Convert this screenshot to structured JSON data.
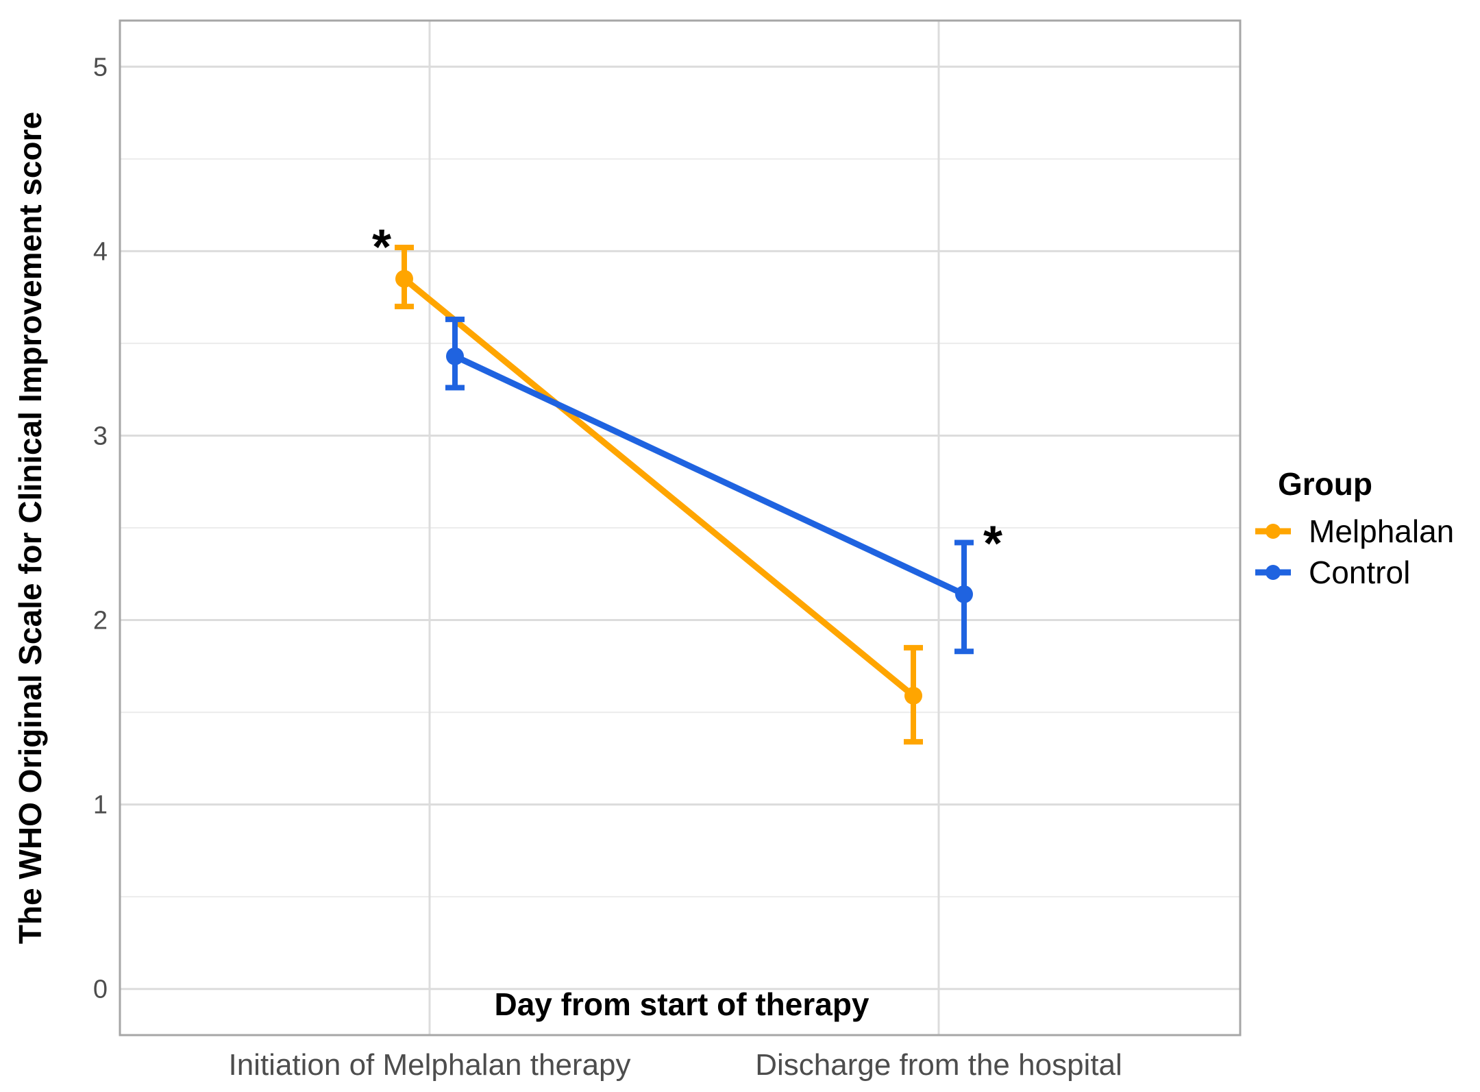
{
  "chart_data": {
    "type": "line",
    "categories": [
      "Initiation of Melphalan therapy",
      "Discharge from the hospital"
    ],
    "xlabel": "Day from start of therapy",
    "ylabel": "The WHO Original Scale for Clinical Improvement  score",
    "ylim": [
      -0.25,
      5.25
    ],
    "yticks": [
      "0",
      "1",
      "2",
      "3",
      "4",
      "5"
    ],
    "grid": true,
    "legend": {
      "title": "Group",
      "placement": "right"
    },
    "series": [
      {
        "name": "Melphalan",
        "color": "#FFA500",
        "values": [
          3.85,
          1.59
        ],
        "error_low": [
          3.7,
          1.34
        ],
        "error_high": [
          4.02,
          1.85
        ],
        "dodge": -1
      },
      {
        "name": "Control",
        "color": "#1F63E0",
        "values": [
          3.43,
          2.14
        ],
        "error_low": [
          3.26,
          1.83
        ],
        "error_high": [
          3.63,
          2.42
        ],
        "dodge": 1
      }
    ],
    "annotations": [
      {
        "text": "*",
        "category": 0,
        "series": 0
      },
      {
        "text": "*",
        "category": 1,
        "series": 1
      }
    ]
  }
}
